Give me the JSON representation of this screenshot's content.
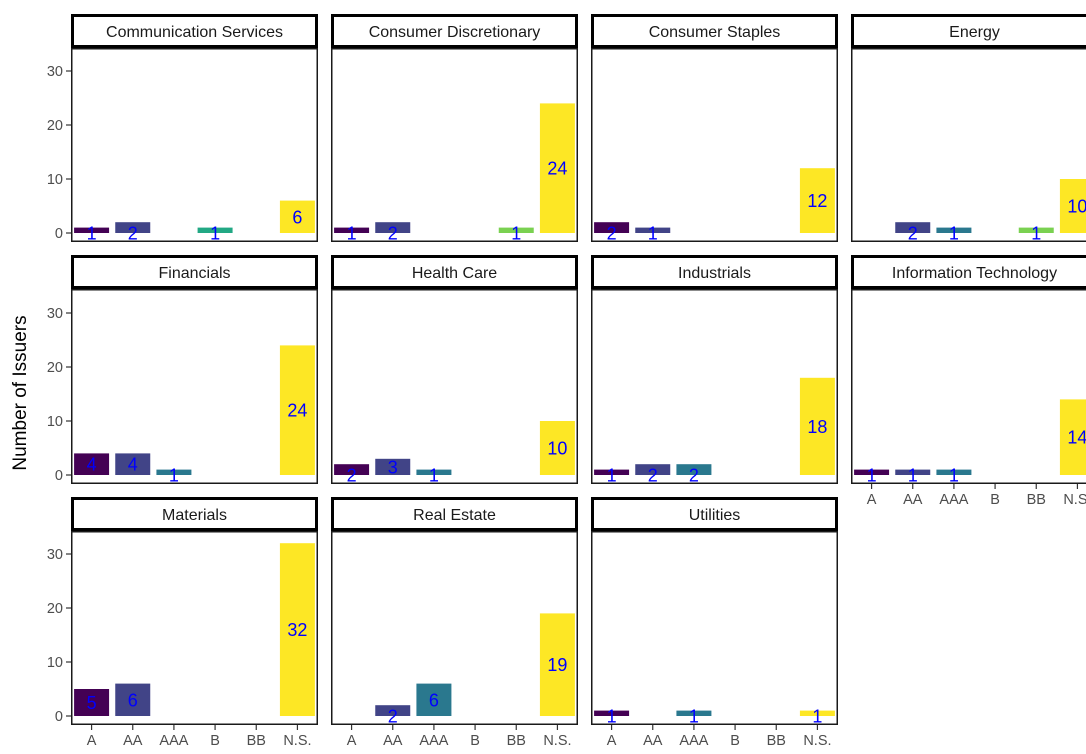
{
  "chart_data": {
    "type": "bar",
    "facet_layout": "wrap, 4 columns, 3 rows",
    "categories": [
      "A",
      "AA",
      "AAA",
      "B",
      "BB",
      "N.S."
    ],
    "category_colors": {
      "A": "#440154",
      "AA": "#414487",
      "AAA": "#2A788E",
      "B": "#22A884",
      "BB": "#7AD151",
      "N.S.": "#FDE725"
    },
    "data_label_color": "#0000FF",
    "ylabel": "Number of Issuers",
    "xlabel": "",
    "ylim": [
      0,
      36
    ],
    "yticks": [
      "0",
      "10",
      "20",
      "30"
    ],
    "grid": false,
    "legend": "none",
    "facets": [
      {
        "title": "Communication Services",
        "values": {
          "A": 1,
          "AA": 2,
          "B": 1,
          "N.S.": 6
        }
      },
      {
        "title": "Consumer Discretionary",
        "values": {
          "A": 1,
          "AA": 2,
          "BB": 1,
          "N.S.": 24
        }
      },
      {
        "title": "Consumer Staples",
        "values": {
          "A": 2,
          "AA": 1,
          "N.S.": 12
        }
      },
      {
        "title": "Energy",
        "values": {
          "AA": 2,
          "AAA": 1,
          "BB": 1,
          "N.S.": 10
        }
      },
      {
        "title": "Financials",
        "values": {
          "A": 4,
          "AA": 4,
          "AAA": 1,
          "N.S.": 24
        }
      },
      {
        "title": "Health Care",
        "values": {
          "A": 2,
          "AA": 3,
          "AAA": 1,
          "N.S.": 10
        }
      },
      {
        "title": "Industrials",
        "values": {
          "A": 1,
          "AA": 2,
          "AAA": 2,
          "N.S.": 18
        }
      },
      {
        "title": "Information Technology",
        "values": {
          "A": 1,
          "AA": 1,
          "AAA": 1,
          "N.S.": 14
        }
      },
      {
        "title": "Materials",
        "values": {
          "A": 5,
          "AA": 6,
          "N.S.": 32
        }
      },
      {
        "title": "Real Estate",
        "values": {
          "AA": 2,
          "AAA": 6,
          "N.S.": 19
        }
      },
      {
        "title": "Utilities",
        "values": {
          "A": 1,
          "AAA": 1,
          "N.S.": 1
        }
      }
    ]
  }
}
